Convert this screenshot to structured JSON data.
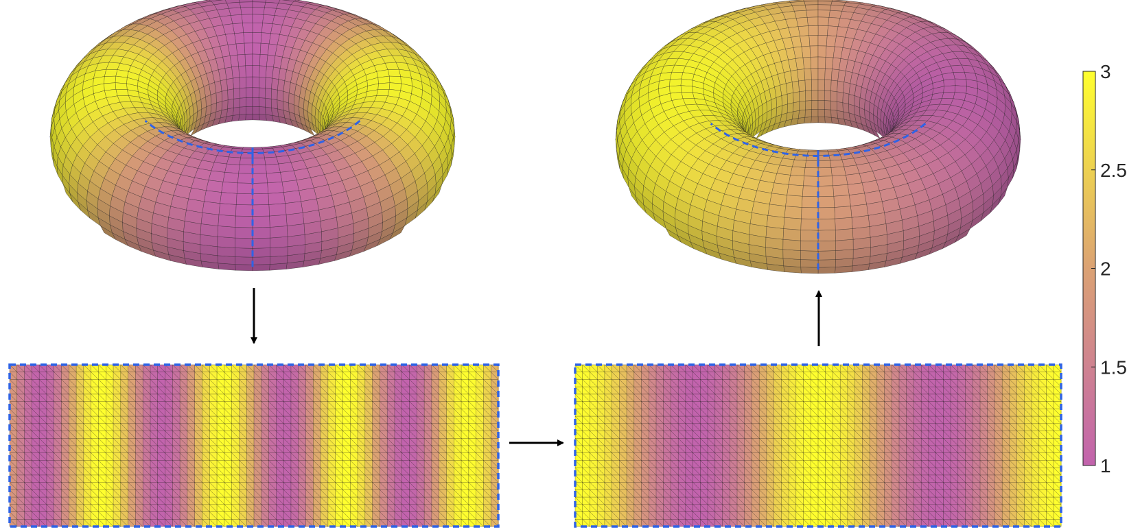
{
  "colormap": {
    "low_color": "#c263ad",
    "mid_color": "#dba274",
    "high_color": "#ffff2e",
    "min": 1,
    "max": 3
  },
  "colorbar": {
    "ticks": [
      {
        "value": 1,
        "label": "1"
      },
      {
        "value": 1.5,
        "label": "1.5"
      },
      {
        "value": 2,
        "label": "2"
      },
      {
        "value": 2.5,
        "label": "2.5"
      },
      {
        "value": 3,
        "label": "3"
      }
    ]
  },
  "seam_color": "#2f63e6",
  "mesh_line_color": "#1a1a1a",
  "arrow_color": "#000000",
  "panels": [
    {
      "id": "torus-original",
      "kind": "torus",
      "phase": 0.0,
      "bands_per_turn": 2
    },
    {
      "id": "plane-original",
      "kind": "plane",
      "phase": 0.25,
      "bands_across": 4
    },
    {
      "id": "plane-processed",
      "kind": "plane",
      "phase": 0.0,
      "bands_across": 2
    },
    {
      "id": "torus-processed",
      "kind": "torus",
      "phase": 0.5,
      "bands_per_turn": 1
    }
  ],
  "arrows": [
    {
      "id": "torus-to-plane",
      "direction": "down"
    },
    {
      "id": "plane-to-plane",
      "direction": "right"
    },
    {
      "id": "plane-to-torus",
      "direction": "up"
    }
  ]
}
